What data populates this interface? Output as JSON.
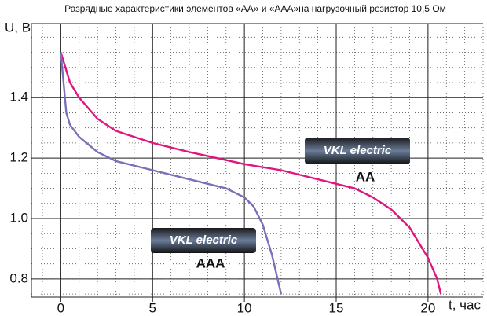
{
  "chart_data": {
    "type": "line",
    "title": "Разрядные характеристики элементов «АА» и «ААА»на нагрузочный резистор 10,5 Ом",
    "y_label": "U, B",
    "x_label": "t, час",
    "annotations": [
      "VKL electric",
      "AA",
      "VKL electric",
      "AAA"
    ],
    "xlim": [
      -1.6,
      23
    ],
    "ylim": [
      0.74,
      1.645
    ],
    "xticks": [
      0,
      5,
      10,
      15,
      20
    ],
    "yticks": [
      0.8,
      {
        "value": 1,
        "label": "1.0"
      },
      1.2,
      1.4
    ],
    "grid": true,
    "x_minor_step": 1,
    "y_minor_step": 0.05,
    "series": [
      {
        "name": "AA",
        "color": "#e0157f",
        "x": [
          0,
          0.5,
          1,
          2,
          3,
          5,
          7,
          10,
          12,
          14,
          16,
          17,
          18,
          19,
          20,
          20.5,
          20.7
        ],
        "values": [
          1.55,
          1.45,
          1.4,
          1.33,
          1.29,
          1.25,
          1.22,
          1.18,
          1.16,
          1.13,
          1.1,
          1.07,
          1.03,
          0.97,
          0.87,
          0.8,
          0.75
        ]
      },
      {
        "name": "AAA",
        "color": "#7a6fb8",
        "x": [
          0,
          0.3,
          0.5,
          1,
          2,
          3,
          5,
          7,
          9,
          10,
          10.5,
          11,
          11.5,
          12
        ],
        "values": [
          1.55,
          1.35,
          1.31,
          1.27,
          1.22,
          1.19,
          1.16,
          1.13,
          1.1,
          1.07,
          1.04,
          0.98,
          0.88,
          0.75
        ]
      }
    ]
  }
}
